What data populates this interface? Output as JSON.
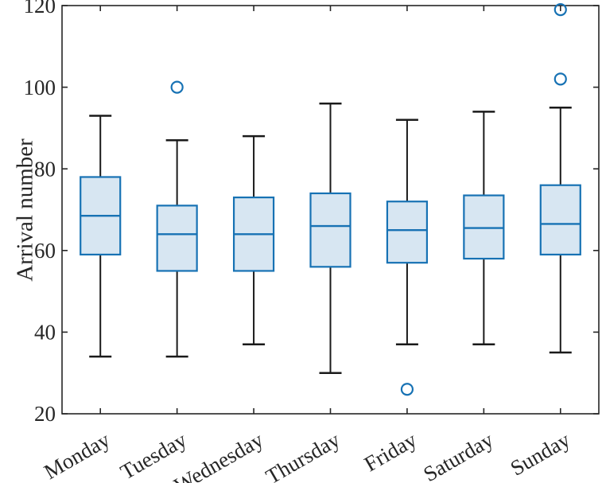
{
  "chart_data": {
    "type": "boxplot",
    "title": "",
    "xlabel": "",
    "ylabel": "Arrival number",
    "ylim": [
      20,
      120
    ],
    "yticks": [
      20,
      40,
      60,
      80,
      100,
      120
    ],
    "grid": false,
    "legend": null,
    "categories": [
      "Monday",
      "Tuesday",
      "Wednesday",
      "Thursday",
      "Friday",
      "Saturday",
      "Sunday"
    ],
    "series": [
      {
        "name": "Monday",
        "whisker_low": 34,
        "q1": 59,
        "median": 68.5,
        "q3": 78,
        "whisker_high": 93,
        "outliers": []
      },
      {
        "name": "Tuesday",
        "whisker_low": 34,
        "q1": 55,
        "median": 64,
        "q3": 71,
        "whisker_high": 87,
        "outliers": [
          100
        ]
      },
      {
        "name": "Wednesday",
        "whisker_low": 37,
        "q1": 55,
        "median": 64,
        "q3": 73,
        "whisker_high": 88,
        "outliers": []
      },
      {
        "name": "Thursday",
        "whisker_low": 30,
        "q1": 56,
        "median": 66,
        "q3": 74,
        "whisker_high": 96,
        "outliers": []
      },
      {
        "name": "Friday",
        "whisker_low": 37,
        "q1": 57,
        "median": 65,
        "q3": 72,
        "whisker_high": 92,
        "outliers": [
          26
        ]
      },
      {
        "name": "Saturday",
        "whisker_low": 37,
        "q1": 58,
        "median": 65.5,
        "q3": 73.5,
        "whisker_high": 94,
        "outliers": []
      },
      {
        "name": "Sunday",
        "whisker_low": 35,
        "q1": 59,
        "median": 66.5,
        "q3": 76,
        "whisker_high": 95,
        "outliers": [
          102,
          119
        ]
      }
    ],
    "colors": {
      "box_edge": "#1772B4",
      "box_fill": "#D7E6F2",
      "median": "#1772B4",
      "whisker": "#1A1A1A",
      "outlier": "#1772B4",
      "axis": "#262626",
      "text": "#262626"
    }
  }
}
